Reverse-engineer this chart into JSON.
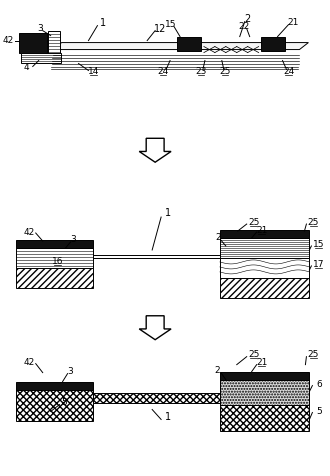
{
  "fig_width": 3.3,
  "fig_height": 4.76,
  "bg_color": "#ffffff",
  "lc": "#000000",
  "fill_black": "#111111",
  "lw": 0.7
}
